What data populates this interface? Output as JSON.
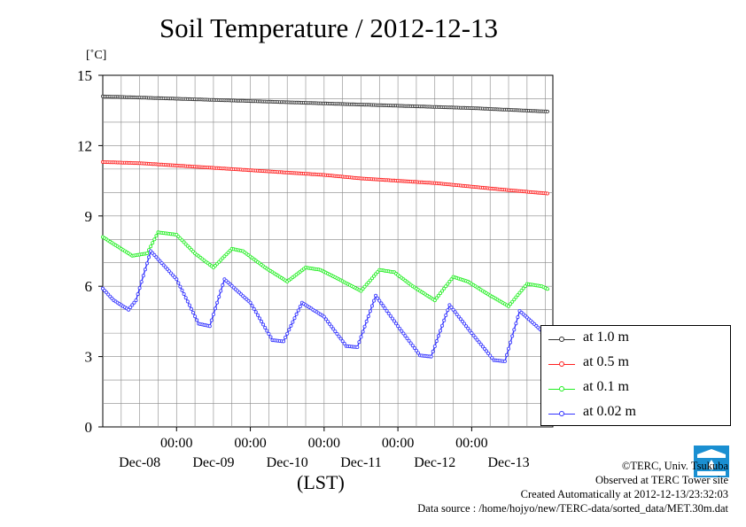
{
  "chart_data": {
    "type": "line",
    "title": "Soil Temperature / 2012-12-13",
    "ylabel": "[˚C]",
    "xlabel": "(LST)",
    "ylim": [
      0,
      15
    ],
    "yticks": [
      0,
      3,
      6,
      9,
      12,
      15
    ],
    "xlim_days": [
      0,
      6.1
    ],
    "xticks": [
      {
        "day": 1.0,
        "time": "00:00",
        "date": "Dec-08"
      },
      {
        "day": 2.0,
        "time": "00:00",
        "date": "Dec-09"
      },
      {
        "day": 3.0,
        "time": "00:00",
        "date": "Dec-10"
      },
      {
        "day": 4.0,
        "time": "00:00",
        "date": "Dec-11"
      },
      {
        "day": 5.0,
        "time": "00:00",
        "date": "Dec-12"
      },
      {
        "day": null,
        "time": "",
        "date": "Dec-13"
      }
    ],
    "grid": true,
    "legend_position": "right",
    "series": [
      {
        "name": "at 1.0 m",
        "color": "#333333",
        "x": [
          0,
          1,
          2,
          3,
          4,
          5,
          6.05
        ],
        "y": [
          14.1,
          14.0,
          13.9,
          13.8,
          13.7,
          13.6,
          13.45
        ]
      },
      {
        "name": "at 0.5 m",
        "color": "#ff2020",
        "x": [
          0,
          0.5,
          1,
          1.5,
          2,
          2.5,
          3,
          3.5,
          4,
          4.5,
          5,
          5.5,
          6.05
        ],
        "y": [
          11.3,
          11.25,
          11.15,
          11.05,
          10.95,
          10.85,
          10.75,
          10.6,
          10.5,
          10.4,
          10.25,
          10.1,
          9.95
        ]
      },
      {
        "name": "at 0.1 m",
        "color": "#22ee22",
        "x": [
          0,
          0.2,
          0.4,
          0.6,
          0.75,
          1.0,
          1.25,
          1.5,
          1.75,
          1.9,
          2.2,
          2.5,
          2.75,
          2.95,
          3.2,
          3.5,
          3.75,
          3.95,
          4.2,
          4.5,
          4.75,
          4.95,
          5.2,
          5.5,
          5.75,
          5.95,
          6.05
        ],
        "y": [
          8.1,
          7.7,
          7.3,
          7.4,
          8.3,
          8.2,
          7.4,
          6.8,
          7.6,
          7.5,
          6.8,
          6.2,
          6.8,
          6.7,
          6.3,
          5.8,
          6.7,
          6.6,
          6.0,
          5.4,
          6.4,
          6.2,
          5.7,
          5.15,
          6.1,
          6.0,
          5.85
        ]
      },
      {
        "name": "at 0.02 m",
        "color": "#3333ff",
        "x": [
          0,
          0.15,
          0.35,
          0.45,
          0.65,
          1.0,
          1.3,
          1.45,
          1.65,
          2.0,
          2.3,
          2.45,
          2.7,
          3.0,
          3.3,
          3.45,
          3.7,
          4.0,
          4.3,
          4.45,
          4.7,
          5.0,
          5.3,
          5.45,
          5.65,
          5.95,
          6.05
        ],
        "y": [
          5.9,
          5.4,
          5.0,
          5.4,
          7.5,
          6.3,
          4.4,
          4.3,
          6.3,
          5.3,
          3.7,
          3.65,
          5.3,
          4.7,
          3.45,
          3.4,
          5.6,
          4.3,
          3.05,
          3.0,
          5.2,
          4.0,
          2.85,
          2.8,
          4.95,
          4.1,
          3.8
        ]
      }
    ]
  },
  "credits": {
    "copyright": "©TERC, Univ. Tsukuba",
    "observed": "Observed at TERC Tower site",
    "created": "Created Automatically at 2012-12-13/23:32:03",
    "source": "Data source : /home/hojyo/new/TERC-data/sorted_data/MET.30m.dat"
  },
  "logo": {
    "name": "terc-logo",
    "text": "TERC",
    "color": "#1a8fd1"
  }
}
